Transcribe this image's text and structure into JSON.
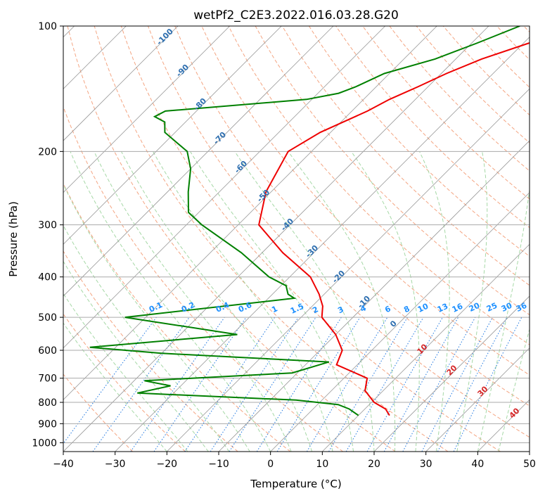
{
  "chart_data": {
    "type": "line",
    "subtype": "skew-T log-P diagram",
    "title": "wetPf2_C2E3.2022.016.03.28.G20",
    "xlabel": "Temperature (°C)",
    "ylabel": "Pressure (hPa)",
    "xlim": [
      -40,
      50
    ],
    "ylim": [
      1050,
      100
    ],
    "y_scale": "log",
    "grid": true,
    "x_ticks": [
      -40,
      -30,
      -20,
      -10,
      0,
      10,
      20,
      30,
      40,
      50
    ],
    "x_tick_labels": [
      "−40",
      "−30",
      "−20",
      "−10",
      "0",
      "10",
      "20",
      "30",
      "40",
      "50"
    ],
    "y_ticks": [
      100,
      200,
      300,
      400,
      500,
      600,
      700,
      800,
      900,
      1000
    ],
    "y_tick_labels": [
      "100",
      "200",
      "300",
      "400",
      "500",
      "600",
      "700",
      "800",
      "900",
      "1000"
    ],
    "series": [
      {
        "role": "temperature",
        "color": "#ee0000",
        "points": [
          [
            -24,
            100
          ],
          [
            -29,
            110
          ],
          [
            -35,
            120
          ],
          [
            -39,
            130
          ],
          [
            -42,
            140
          ],
          [
            -45,
            150
          ],
          [
            -47,
            160
          ],
          [
            -52,
            180
          ],
          [
            -54.5,
            200
          ],
          [
            -51,
            250
          ],
          [
            -46,
            300
          ],
          [
            -36,
            350
          ],
          [
            -26,
            400
          ],
          [
            -21,
            440
          ],
          [
            -18,
            470
          ],
          [
            -16,
            500
          ],
          [
            -10,
            550
          ],
          [
            -5.7,
            600
          ],
          [
            -4,
            650
          ],
          [
            4.5,
            700
          ],
          [
            6.5,
            750
          ],
          [
            10.5,
            800
          ],
          [
            14,
            830
          ],
          [
            16,
            860
          ]
        ]
      },
      {
        "role": "dewpoint",
        "color": "#008000",
        "points": [
          [
            -34,
            100
          ],
          [
            -39,
            110
          ],
          [
            -44,
            120
          ],
          [
            -51,
            130
          ],
          [
            -54,
            140
          ],
          [
            -56,
            145
          ],
          [
            -61,
            150
          ],
          [
            -86,
            160
          ],
          [
            -87,
            165
          ],
          [
            -84,
            170
          ],
          [
            -82,
            180
          ],
          [
            -74,
            200
          ],
          [
            -70,
            220
          ],
          [
            -66,
            250
          ],
          [
            -62,
            280
          ],
          [
            -57,
            300
          ],
          [
            -44,
            350
          ],
          [
            -34,
            400
          ],
          [
            -29,
            420
          ],
          [
            -27,
            440
          ],
          [
            -25,
            450
          ],
          [
            -54,
            500
          ],
          [
            -29,
            550
          ],
          [
            -55,
            590
          ],
          [
            -40,
            610
          ],
          [
            -6,
            640
          ],
          [
            -11,
            680
          ],
          [
            -38,
            710
          ],
          [
            -32,
            730
          ],
          [
            -37,
            760
          ],
          [
            -5,
            790
          ],
          [
            4,
            810
          ],
          [
            7,
            830
          ],
          [
            10,
            860
          ]
        ]
      }
    ],
    "background_lines": {
      "dry_adiabats_label": "dashed light red",
      "moist_adiabats_label": "dashed light green",
      "mixing_ratio_label": "dotted blue"
    },
    "annotations_blue": [
      "-100",
      "-90",
      "-80",
      "-70",
      "-60",
      "-50",
      "-40",
      "-30",
      "-20",
      "-10",
      "0"
    ],
    "mixing_ratio_labels": [
      "0.1",
      "0.2",
      "0.4",
      "0.6",
      "1",
      "1.5",
      "2",
      "3",
      "4",
      "6",
      "8",
      "10",
      "13",
      "16",
      "20",
      "25",
      "30",
      "36"
    ],
    "annotations_red": [
      "10",
      "20",
      "30",
      "40"
    ]
  }
}
